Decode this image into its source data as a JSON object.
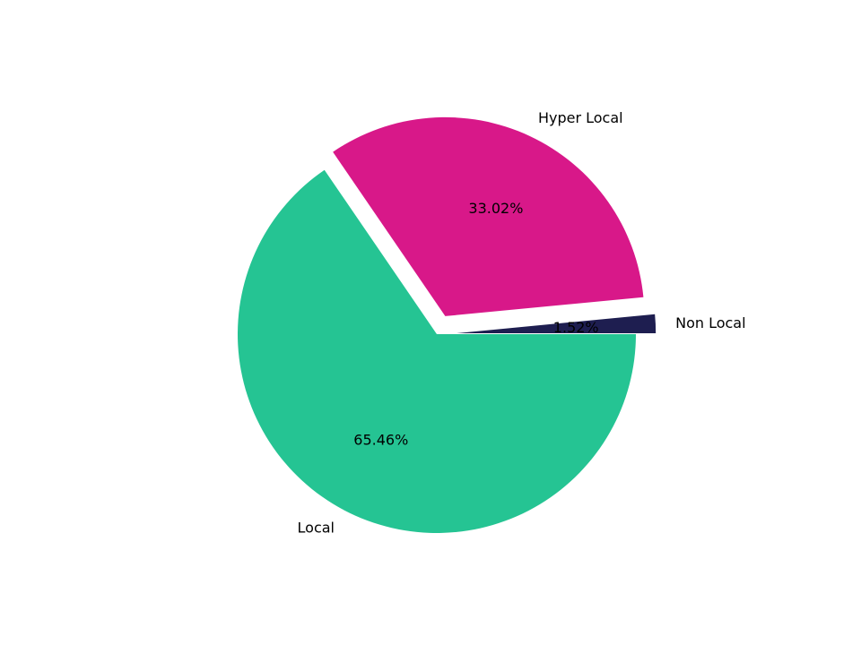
{
  "chart_data": {
    "type": "pie",
    "slices": [
      {
        "label": "Non Local",
        "value": 1.52,
        "pct_label": "1.52%",
        "color": "#1e1e50"
      },
      {
        "label": "Hyper Local",
        "value": 33.02,
        "pct_label": "33.02%",
        "color": "#d81889"
      },
      {
        "label": "Local",
        "value": 65.46,
        "pct_label": "65.46%",
        "color": "#25c493"
      }
    ],
    "start_angle": 0,
    "direction": "counterclockwise",
    "exploded": [
      "Non Local",
      "Hyper Local"
    ],
    "legend": "none"
  }
}
